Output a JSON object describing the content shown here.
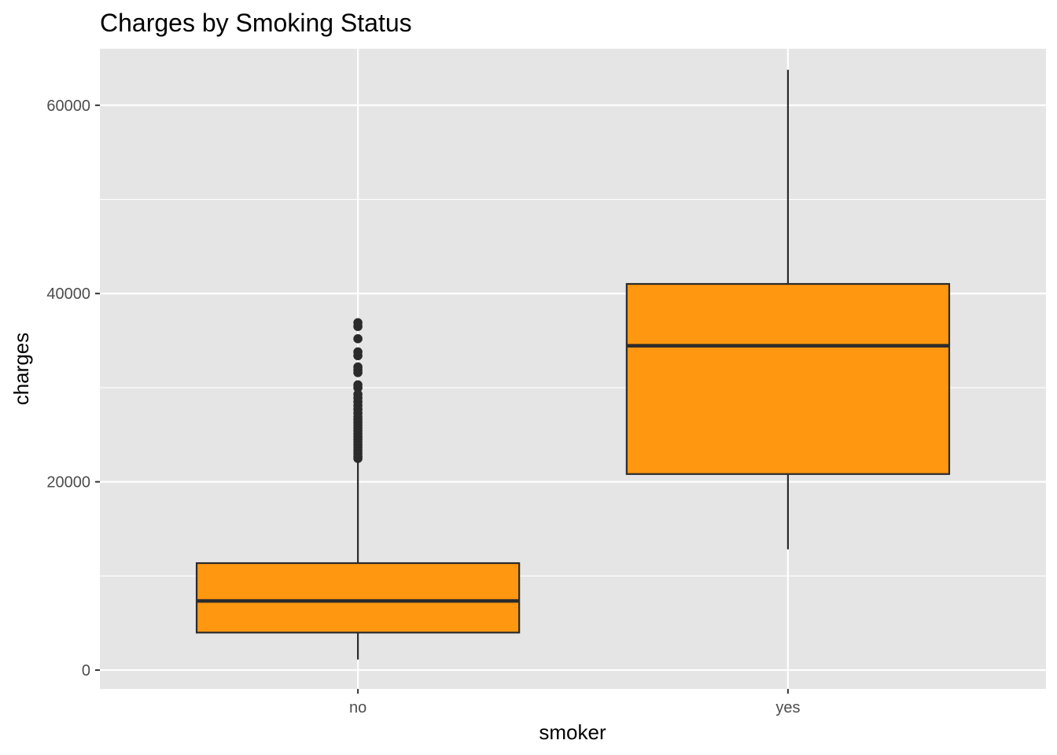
{
  "chart_data": {
    "type": "box",
    "title": "Charges by Smoking Status",
    "xlabel": "smoker",
    "ylabel": "charges",
    "categories": [
      "no",
      "yes"
    ],
    "ylim": [
      -2000,
      66000
    ],
    "yticks": [
      0,
      20000,
      40000,
      60000
    ],
    "ytick_labels": [
      "0",
      "20000",
      "40000",
      "60000"
    ],
    "grid": true,
    "legend": "none",
    "colors": {
      "panel": "#E5E5E5",
      "grid": "#FFFFFF",
      "box_fill": "#FF9710",
      "box_stroke": "#2B2B2B",
      "tick_text": "#4D4D4D"
    },
    "boxes": [
      {
        "category": "no",
        "whisker_low": 1122,
        "q1": 3986,
        "median": 7345,
        "q3": 11363,
        "whisker_high": 22411,
        "outliers": [
          22480,
          22700,
          23000,
          23300,
          23600,
          23900,
          24200,
          24500,
          24800,
          25100,
          25400,
          25700,
          26000,
          26300,
          26600,
          26900,
          27300,
          27700,
          28100,
          28500,
          28900,
          29300,
          30000,
          30300,
          31600,
          31900,
          32200,
          33400,
          33800,
          35200,
          36500,
          36900
        ]
      },
      {
        "category": "yes",
        "whisker_low": 12829,
        "q1": 20826,
        "median": 34456,
        "q3": 41019,
        "whisker_high": 63770,
        "outliers": []
      }
    ]
  }
}
